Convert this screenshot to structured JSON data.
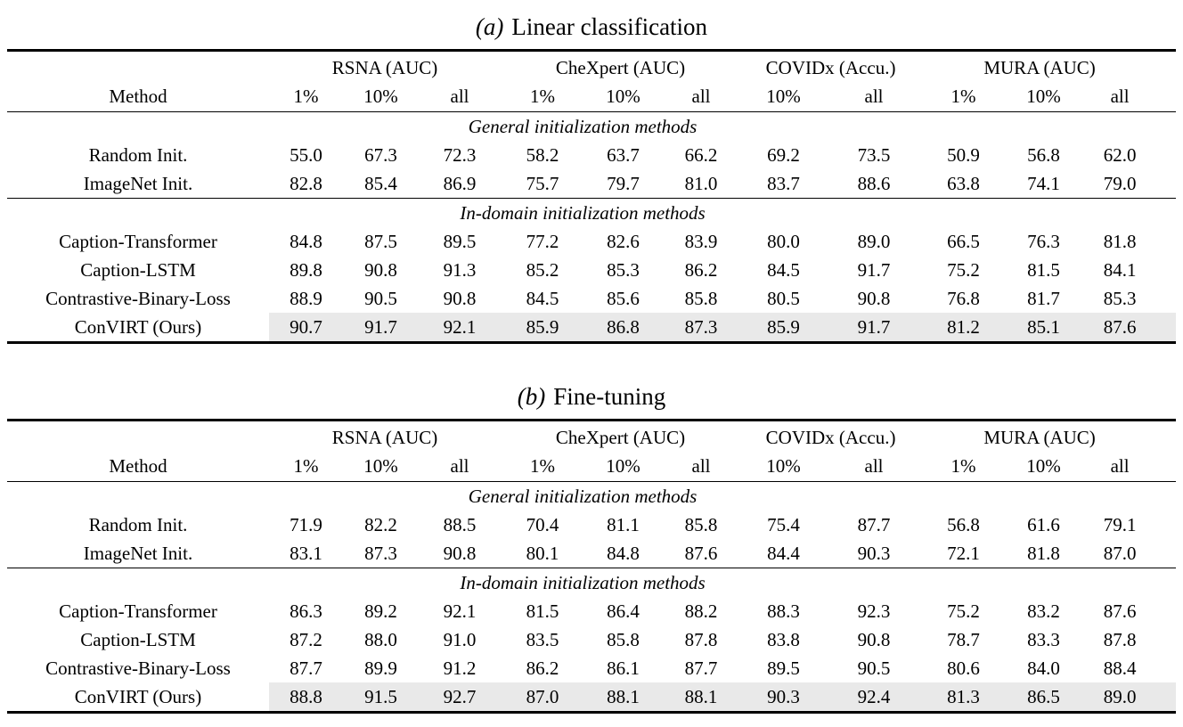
{
  "style": {
    "highlight_color": "#e9e9e9",
    "rule_color": "#000000",
    "text_color": "#000000",
    "background_color": "#ffffff"
  },
  "tables": [
    {
      "id": "a",
      "caption_prefix": "(a)",
      "caption_text": "Linear classification",
      "method_header": "Method",
      "groups": [
        {
          "label": "RSNA (AUC)",
          "span": 3
        },
        {
          "label": "CheXpert (AUC)",
          "span": 3
        },
        {
          "label": "COVIDx (Accu.)",
          "span": 2
        },
        {
          "label": "MURA (AUC)",
          "span": 3
        }
      ],
      "subheaders": [
        "1%",
        "10%",
        "all",
        "1%",
        "10%",
        "all",
        "10%",
        "all",
        "1%",
        "10%",
        "all"
      ],
      "sections": [
        {
          "label": "General initialization methods",
          "rows": [
            {
              "method": "Random Init.",
              "highlight": false,
              "bold_cols": [],
              "values": [
                "55.0",
                "67.3",
                "72.3",
                "58.2",
                "63.7",
                "66.2",
                "69.2",
                "73.5",
                "50.9",
                "56.8",
                "62.0"
              ]
            },
            {
              "method": "ImageNet Init.",
              "highlight": false,
              "bold_cols": [],
              "values": [
                "82.8",
                "85.4",
                "86.9",
                "75.7",
                "79.7",
                "81.0",
                "83.7",
                "88.6",
                "63.8",
                "74.1",
                "79.0"
              ]
            }
          ]
        },
        {
          "label": "In-domain initialization methods",
          "rows": [
            {
              "method": "Caption-Transformer",
              "highlight": false,
              "bold_cols": [],
              "values": [
                "84.8",
                "87.5",
                "89.5",
                "77.2",
                "82.6",
                "83.9",
                "80.0",
                "89.0",
                "66.5",
                "76.3",
                "81.8"
              ]
            },
            {
              "method": "Caption-LSTM",
              "highlight": false,
              "bold_cols": [
                7
              ],
              "values": [
                "89.8",
                "90.8",
                "91.3",
                "85.2",
                "85.3",
                "86.2",
                "84.5",
                "91.7",
                "75.2",
                "81.5",
                "84.1"
              ]
            },
            {
              "method": "Contrastive-Binary-Loss",
              "highlight": false,
              "bold_cols": [],
              "values": [
                "88.9",
                "90.5",
                "90.8",
                "84.5",
                "85.6",
                "85.8",
                "80.5",
                "90.8",
                "76.8",
                "81.7",
                "85.3"
              ]
            },
            {
              "method": "ConVIRT (Ours)",
              "highlight": true,
              "bold_cols": [
                0,
                1,
                2,
                3,
                4,
                5,
                6,
                7,
                8,
                9,
                10
              ],
              "values": [
                "90.7",
                "91.7",
                "92.1",
                "85.9",
                "86.8",
                "87.3",
                "85.9",
                "91.7",
                "81.2",
                "85.1",
                "87.6"
              ]
            }
          ]
        }
      ]
    },
    {
      "id": "b",
      "caption_prefix": "(b)",
      "caption_text": "Fine-tuning",
      "method_header": "Method",
      "groups": [
        {
          "label": "RSNA (AUC)",
          "span": 3
        },
        {
          "label": "CheXpert (AUC)",
          "span": 3
        },
        {
          "label": "COVIDx (Accu.)",
          "span": 2
        },
        {
          "label": "MURA (AUC)",
          "span": 3
        }
      ],
      "subheaders": [
        "1%",
        "10%",
        "all",
        "1%",
        "10%",
        "all",
        "10%",
        "all",
        "1%",
        "10%",
        "all"
      ],
      "sections": [
        {
          "label": "General initialization methods",
          "rows": [
            {
              "method": "Random Init.",
              "highlight": false,
              "bold_cols": [],
              "values": [
                "71.9",
                "82.2",
                "88.5",
                "70.4",
                "81.1",
                "85.8",
                "75.4",
                "87.7",
                "56.8",
                "61.6",
                "79.1"
              ]
            },
            {
              "method": "ImageNet Init.",
              "highlight": false,
              "bold_cols": [],
              "values": [
                "83.1",
                "87.3",
                "90.8",
                "80.1",
                "84.8",
                "87.6",
                "84.4",
                "90.3",
                "72.1",
                "81.8",
                "87.0"
              ]
            }
          ]
        },
        {
          "label": "In-domain initialization methods",
          "rows": [
            {
              "method": "Caption-Transformer",
              "highlight": false,
              "bold_cols": [
                5
              ],
              "values": [
                "86.3",
                "89.2",
                "92.1",
                "81.5",
                "86.4",
                "88.2",
                "88.3",
                "92.3",
                "75.2",
                "83.2",
                "87.6"
              ]
            },
            {
              "method": "Caption-LSTM",
              "highlight": false,
              "bold_cols": [],
              "values": [
                "87.2",
                "88.0",
                "91.0",
                "83.5",
                "85.8",
                "87.8",
                "83.8",
                "90.8",
                "78.7",
                "83.3",
                "87.8"
              ]
            },
            {
              "method": "Contrastive-Binary-Loss",
              "highlight": false,
              "bold_cols": [],
              "values": [
                "87.7",
                "89.9",
                "91.2",
                "86.2",
                "86.1",
                "87.7",
                "89.5",
                "90.5",
                "80.6",
                "84.0",
                "88.4"
              ]
            },
            {
              "method": "ConVIRT (Ours)",
              "highlight": true,
              "bold_cols": [
                0,
                1,
                2,
                3,
                4,
                6,
                7,
                8,
                9,
                10
              ],
              "values": [
                "88.8",
                "91.5",
                "92.7",
                "87.0",
                "88.1",
                "88.1",
                "90.3",
                "92.4",
                "81.3",
                "86.5",
                "89.0"
              ]
            }
          ]
        }
      ]
    }
  ]
}
